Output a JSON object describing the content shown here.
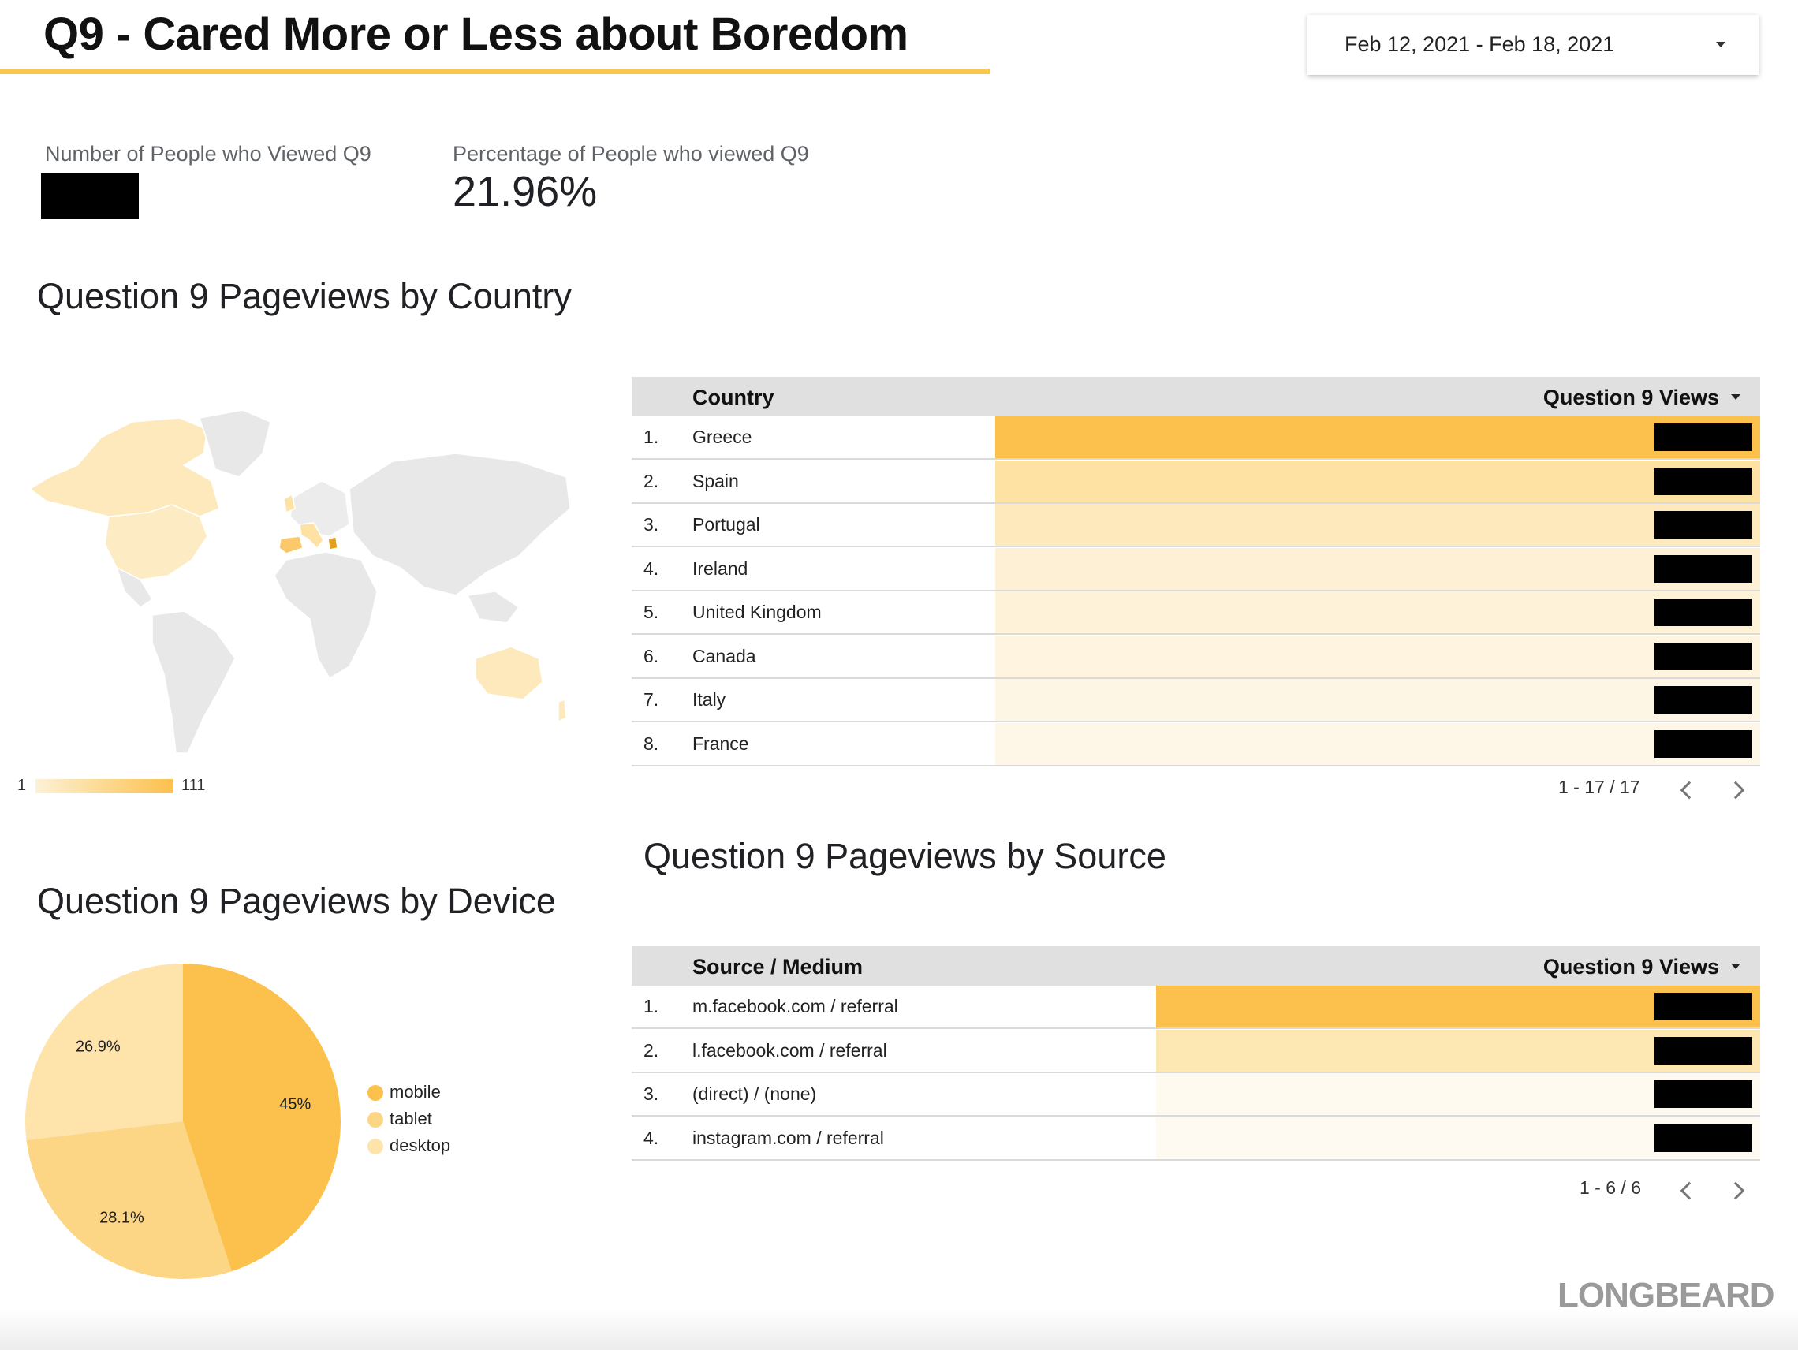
{
  "header": {
    "title": "Q9 - Cared More or Less about Boredom",
    "date_range": "Feb 12, 2021 - Feb 18, 2021"
  },
  "scorecards": {
    "viewers_label": "Number of People who Viewed Q9",
    "viewers_value": "[redacted]",
    "percent_label": "Percentage of People who viewed Q9",
    "percent_value": "21.96%"
  },
  "country_section": {
    "title": "Question 9 Pageviews by Country",
    "legend_min": "1",
    "legend_max": "111",
    "table": {
      "col_dimension": "Country",
      "col_metric": "Question 9 Views",
      "rows": [
        {
          "idx": "1.",
          "name": "Greece",
          "bar": 1.0,
          "color": "#fbc14c"
        },
        {
          "idx": "2.",
          "name": "Spain",
          "bar": 1.0,
          "color": "#fde2a3"
        },
        {
          "idx": "3.",
          "name": "Portugal",
          "bar": 1.0,
          "color": "#fde9bb"
        },
        {
          "idx": "4.",
          "name": "Ireland",
          "bar": 1.0,
          "color": "#fef0d4"
        },
        {
          "idx": "5.",
          "name": "United Kingdom",
          "bar": 1.0,
          "color": "#fef2d9"
        },
        {
          "idx": "6.",
          "name": "Canada",
          "bar": 1.0,
          "color": "#fef4df"
        },
        {
          "idx": "7.",
          "name": "Italy",
          "bar": 1.0,
          "color": "#fef6e5"
        },
        {
          "idx": "8.",
          "name": "France",
          "bar": 1.0,
          "color": "#fef7e8"
        }
      ],
      "pagination": "1 - 17 / 17"
    }
  },
  "source_section": {
    "title": "Question 9 Pageviews by Source",
    "table": {
      "col_dimension": "Source / Medium",
      "col_metric": "Question 9 Views",
      "rows": [
        {
          "idx": "1.",
          "name": "m.facebook.com / referral",
          "color": "#fbc14c"
        },
        {
          "idx": "2.",
          "name": "l.facebook.com / referral",
          "color": "#fde7b3"
        },
        {
          "idx": "3.",
          "name": "(direct) / (none)",
          "color": "#fefaf0"
        },
        {
          "idx": "4.",
          "name": "instagram.com / referral",
          "color": "#fefaf2"
        }
      ],
      "pagination": "1 - 6 / 6"
    }
  },
  "device_section": {
    "title": "Question 9 Pageviews by Device"
  },
  "chart_data": {
    "type": "pie",
    "title": "Question 9 Pageviews by Device",
    "categories": [
      "mobile",
      "tablet",
      "desktop"
    ],
    "values": [
      45,
      28.1,
      26.9
    ],
    "labels": [
      "45%",
      "28.1%",
      "26.9%"
    ],
    "colors": [
      "#fbc14c",
      "#fdd685",
      "#fee3ab"
    ],
    "legend_position": "right"
  },
  "brand": "LONGBEARD",
  "icons": {
    "date_dropdown": "caret-down-icon",
    "sort": "sort-desc-icon",
    "prev": "chevron-left-icon",
    "next": "chevron-right-icon"
  }
}
